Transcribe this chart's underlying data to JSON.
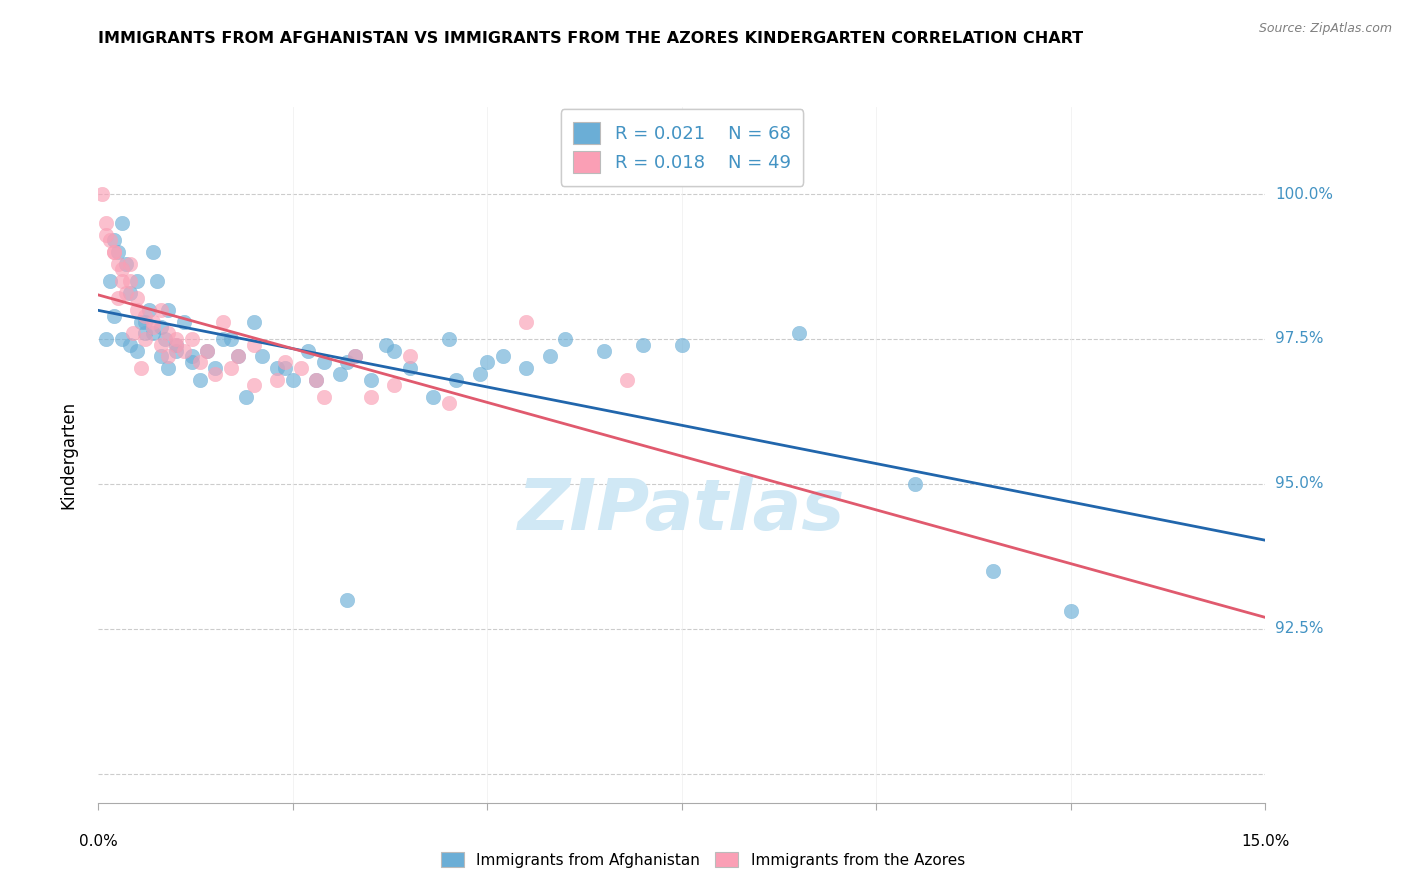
{
  "title": "IMMIGRANTS FROM AFGHANISTAN VS IMMIGRANTS FROM THE AZORES KINDERGARTEN CORRELATION CHART",
  "source": "Source: ZipAtlas.com",
  "ylabel": "Kindergarten",
  "yticks": [
    90.0,
    92.5,
    95.0,
    97.5,
    100.0
  ],
  "ytick_labels": [
    "",
    "92.5%",
    "95.0%",
    "97.5%",
    "100.0%"
  ],
  "xlim": [
    0.0,
    15.0
  ],
  "ylim": [
    89.5,
    101.5
  ],
  "legend_r1": "R = 0.021",
  "legend_n1": "N = 68",
  "legend_r2": "R = 0.018",
  "legend_n2": "N = 49",
  "color_blue": "#6baed6",
  "color_pink": "#fa9fb5",
  "color_blue_line": "#2166ac",
  "color_pink_line": "#e05a6e",
  "color_blue_label": "#4393c3",
  "watermark_color": "#d0e8f5",
  "afghanistan_x": [
    0.1,
    0.15,
    0.2,
    0.25,
    0.3,
    0.35,
    0.4,
    0.5,
    0.55,
    0.6,
    0.65,
    0.7,
    0.75,
    0.8,
    0.85,
    0.9,
    1.0,
    1.1,
    1.2,
    1.3,
    1.5,
    1.7,
    1.9,
    2.1,
    2.3,
    2.5,
    2.7,
    2.9,
    3.1,
    3.3,
    3.5,
    3.7,
    4.0,
    4.3,
    4.6,
    4.9,
    5.2,
    5.5,
    6.0,
    6.5,
    7.5,
    9.0,
    10.5,
    11.5,
    12.5,
    3.2,
    0.2,
    0.3,
    0.4,
    0.5,
    0.6,
    0.7,
    0.8,
    0.9,
    1.0,
    1.2,
    1.4,
    1.6,
    1.8,
    2.0,
    2.4,
    2.8,
    3.2,
    3.8,
    4.5,
    5.0,
    5.8,
    7.0
  ],
  "afghanistan_y": [
    97.5,
    98.5,
    99.2,
    99.0,
    99.5,
    98.8,
    98.3,
    98.5,
    97.8,
    97.6,
    98.0,
    99.0,
    98.5,
    97.7,
    97.5,
    98.0,
    97.3,
    97.8,
    97.2,
    96.8,
    97.0,
    97.5,
    96.5,
    97.2,
    97.0,
    96.8,
    97.3,
    97.1,
    96.9,
    97.2,
    96.8,
    97.4,
    97.0,
    96.5,
    96.8,
    96.9,
    97.2,
    97.0,
    97.5,
    97.3,
    97.4,
    97.6,
    95.0,
    93.5,
    92.8,
    93.0,
    97.9,
    97.5,
    97.4,
    97.3,
    97.8,
    97.6,
    97.2,
    97.0,
    97.4,
    97.1,
    97.3,
    97.5,
    97.2,
    97.8,
    97.0,
    96.8,
    97.1,
    97.3,
    97.5,
    97.1,
    97.2,
    97.4
  ],
  "azores_x": [
    0.05,
    0.1,
    0.15,
    0.2,
    0.25,
    0.3,
    0.35,
    0.4,
    0.5,
    0.6,
    0.7,
    0.8,
    0.9,
    1.0,
    1.2,
    1.4,
    1.6,
    1.8,
    2.0,
    2.3,
    2.6,
    2.9,
    3.3,
    3.8,
    4.5,
    0.1,
    0.2,
    0.3,
    0.4,
    0.5,
    0.6,
    0.7,
    0.8,
    0.9,
    1.0,
    1.1,
    1.3,
    1.5,
    1.7,
    2.0,
    2.4,
    2.8,
    3.5,
    4.0,
    5.5,
    6.8,
    0.25,
    0.45,
    0.55
  ],
  "azores_y": [
    100.0,
    99.5,
    99.2,
    99.0,
    98.8,
    98.5,
    98.3,
    98.8,
    98.2,
    97.5,
    97.8,
    98.0,
    97.6,
    97.4,
    97.5,
    97.3,
    97.8,
    97.2,
    97.4,
    96.8,
    97.0,
    96.5,
    97.2,
    96.7,
    96.4,
    99.3,
    99.0,
    98.7,
    98.5,
    98.0,
    97.9,
    97.7,
    97.4,
    97.2,
    97.5,
    97.3,
    97.1,
    96.9,
    97.0,
    96.7,
    97.1,
    96.8,
    96.5,
    97.2,
    97.8,
    96.8,
    98.2,
    97.6,
    97.0
  ]
}
